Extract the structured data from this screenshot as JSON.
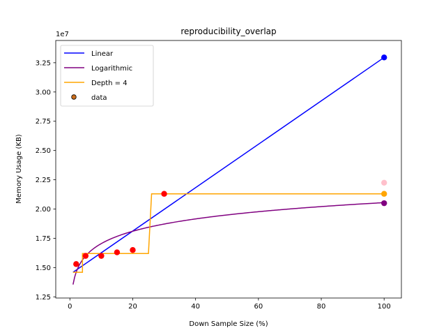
{
  "chart_data": {
    "type": "line",
    "title": "reproducibility_overlap",
    "xlabel": "Down Sample Size (%)",
    "ylabel": "Memory Usage (KB)",
    "y_offset_label": "1e7",
    "xlim": [
      -4.5,
      105.5
    ],
    "ylim": [
      1.24,
      3.44
    ],
    "x_ticks": [
      0,
      20,
      40,
      60,
      80,
      100
    ],
    "y_ticks": [
      1.25,
      1.5,
      1.75,
      2.0,
      2.25,
      2.5,
      2.75,
      3.0,
      3.25
    ],
    "y_tick_labels": [
      "1.25",
      "1.50",
      "1.75",
      "2.00",
      "2.25",
      "2.50",
      "2.75",
      "3.00",
      "3.25"
    ],
    "grid": false,
    "legend_position": "upper left",
    "series": [
      {
        "name": "Linear",
        "kind": "line",
        "color": "#0000ff",
        "x": [
          1,
          100
        ],
        "y": [
          1.46,
          3.295
        ]
      },
      {
        "name": "Logarithmic",
        "kind": "log-curve",
        "color": "#800080",
        "x_range": [
          1,
          100
        ],
        "a": 1.355,
        "b": 0.0152
      },
      {
        "name": "Depth = 4",
        "kind": "step",
        "color": "#ffa500",
        "x": [
          1,
          4,
          4,
          25,
          26,
          100
        ],
        "y": [
          1.46,
          1.46,
          1.62,
          1.62,
          2.13,
          2.13
        ]
      }
    ],
    "scatter": {
      "name": "data",
      "legend_face": "#cc6e1c",
      "points": [
        {
          "x": 2,
          "y": 1.53,
          "color": "#ff0000"
        },
        {
          "x": 5,
          "y": 1.6,
          "color": "#ff0000"
        },
        {
          "x": 10,
          "y": 1.6,
          "color": "#ff0000"
        },
        {
          "x": 15,
          "y": 1.63,
          "color": "#ff0000"
        },
        {
          "x": 20,
          "y": 1.65,
          "color": "#ff0000"
        },
        {
          "x": 30,
          "y": 2.13,
          "color": "#ff0000"
        },
        {
          "x": 100,
          "y": 3.295,
          "color": "#0000ff"
        },
        {
          "x": 100,
          "y": 2.225,
          "color": "#ffc0cb"
        },
        {
          "x": 100,
          "y": 2.13,
          "color": "#ffa500"
        },
        {
          "x": 100,
          "y": 2.05,
          "color": "#800080"
        }
      ]
    }
  }
}
